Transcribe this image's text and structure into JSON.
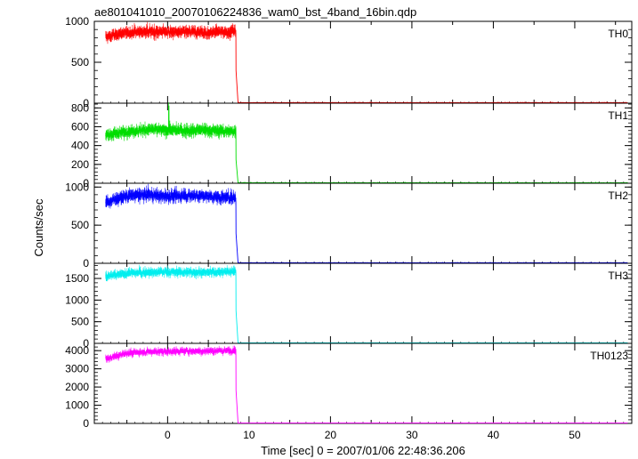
{
  "figure": {
    "title": "ae801041010_20070106224836_wam0_bst_4band_16bin.qdp",
    "xlabel": "Time [sec] 0 = 2007/01/06 22:48:36.206",
    "ylabel": "Counts/sec"
  },
  "chart_data": {
    "type": "line",
    "title": "ae801041010_20070106224836_wam0_bst_4band_16bin.qdp",
    "xlabel": "Time [sec] 0 = 2007/01/06 22:48:36.206",
    "ylabel": "Counts/sec",
    "xlim": [
      -9,
      57
    ],
    "xticks": [
      0,
      10,
      20,
      30,
      40,
      50
    ],
    "grid": false,
    "layout": "5 stacked panels sharing x axis",
    "x_description": "light curve with error bars, 1/64 s bins from about -7.6 s; source on until about 8.4 s, then background near 0",
    "series": [
      {
        "name": "TH0",
        "color": "#ff0000",
        "ylim": [
          0,
          1000
        ],
        "yticks": [
          0,
          500,
          1000
        ],
        "x_start": -7.6,
        "x_drop": 8.4,
        "x_end": 56.5,
        "profile_x": [
          -7.6,
          -5,
          -2.5,
          0,
          2.5,
          5,
          8.4
        ],
        "profile_y": [
          810,
          860,
          880,
          870,
          870,
          860,
          880
        ],
        "noise": 40,
        "post_level": 5,
        "spikes": []
      },
      {
        "name": "TH1",
        "color": "#00dd00",
        "ylim": [
          0,
          850
        ],
        "yticks": [
          0,
          200,
          400,
          600,
          800
        ],
        "x_start": -7.6,
        "x_drop": 8.4,
        "x_end": 56.5,
        "profile_x": [
          -7.6,
          -5,
          -2.5,
          0,
          2.5,
          5,
          8.4
        ],
        "profile_y": [
          510,
          550,
          570,
          565,
          560,
          560,
          550
        ],
        "noise": 35,
        "post_level": 3,
        "spikes": [
          {
            "x": 0.15,
            "y": 820
          }
        ]
      },
      {
        "name": "TH2",
        "color": "#0000ff",
        "ylim": [
          0,
          1050
        ],
        "yticks": [
          0,
          500,
          1000
        ],
        "x_start": -7.6,
        "x_drop": 8.4,
        "x_end": 56.5,
        "profile_x": [
          -7.6,
          -5,
          -2.5,
          0,
          2.5,
          5,
          8.4
        ],
        "profile_y": [
          800,
          880,
          900,
          880,
          890,
          880,
          860
        ],
        "noise": 45,
        "post_level": 5,
        "spikes": []
      },
      {
        "name": "TH3",
        "color": "#00eeee",
        "ylim": [
          0,
          1850
        ],
        "yticks": [
          0,
          500,
          1000,
          1500
        ],
        "x_start": -7.6,
        "x_drop": 8.4,
        "x_end": 56.5,
        "profile_x": [
          -7.6,
          -5,
          -2.5,
          0,
          2.5,
          5,
          8.4
        ],
        "profile_y": [
          1540,
          1620,
          1640,
          1650,
          1640,
          1640,
          1660
        ],
        "noise": 60,
        "post_level": 10,
        "spikes": []
      },
      {
        "name": "TH0123",
        "color": "#ff00ff",
        "ylim": [
          0,
          4400
        ],
        "yticks": [
          0,
          1000,
          2000,
          3000,
          4000
        ],
        "x_start": -7.6,
        "x_drop": 8.4,
        "x_end": 56.5,
        "profile_x": [
          -7.6,
          -5,
          -2.5,
          0,
          2.5,
          5,
          8.4
        ],
        "profile_y": [
          3550,
          3850,
          3950,
          3950,
          3980,
          3980,
          4000
        ],
        "noise": 110,
        "post_level": 20,
        "spikes": []
      }
    ]
  }
}
